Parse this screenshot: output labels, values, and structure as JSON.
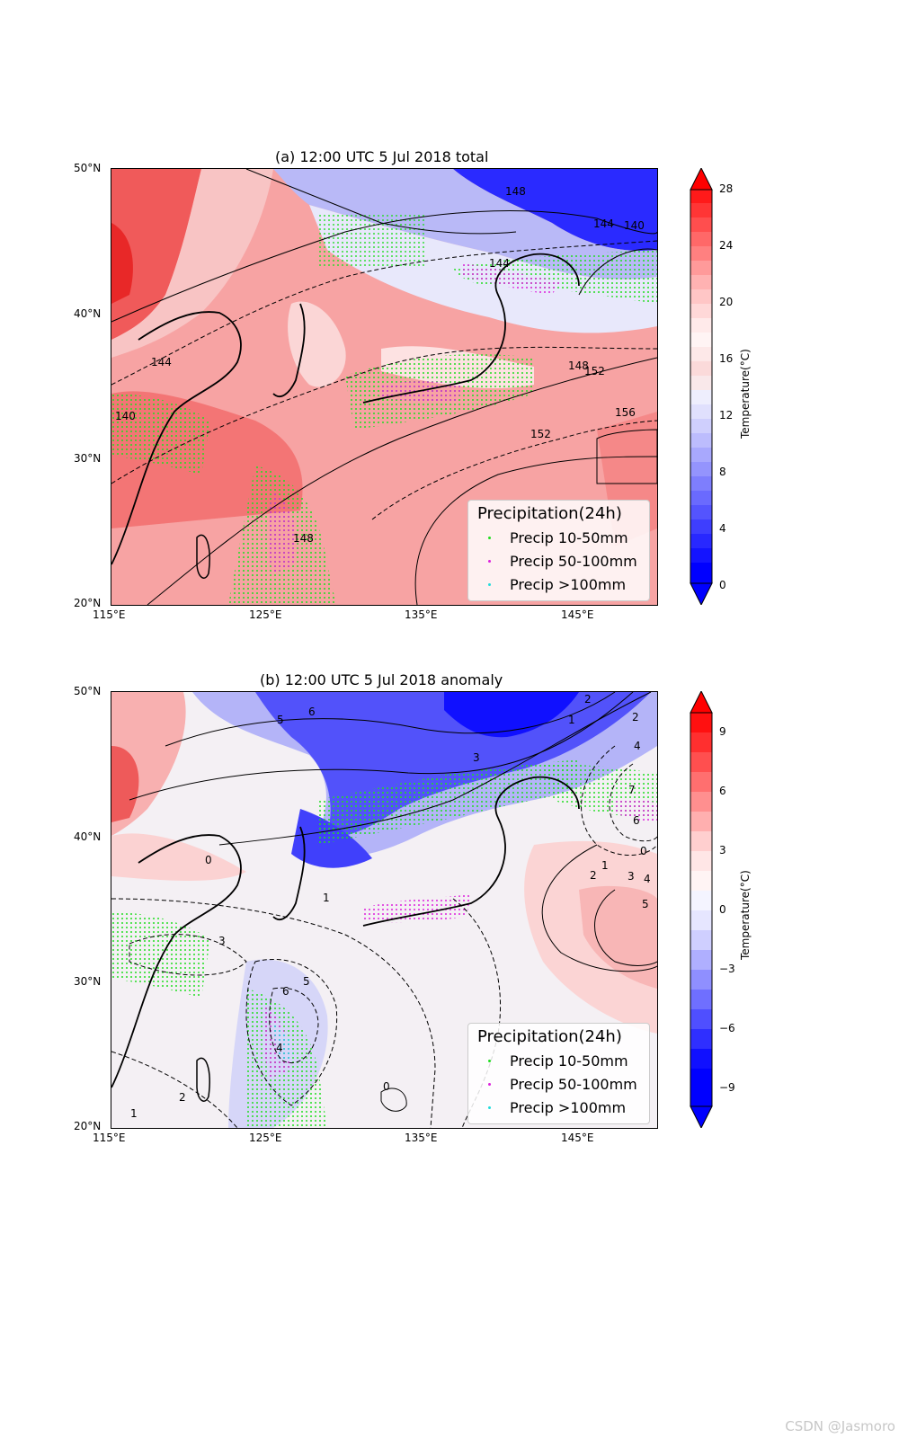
{
  "panels": [
    {
      "title": "(a) 12:00 UTC 5 Jul 2018 total",
      "lat_ticks": [
        "50°N",
        "40°N",
        "30°N",
        "20°N"
      ],
      "lon_ticks": [
        "115°E",
        "125°E",
        "135°E",
        "145°E"
      ],
      "contour_labels": [
        "144",
        "148",
        "144",
        "140",
        "140",
        "144",
        "148",
        "152",
        "152",
        "156",
        "148"
      ],
      "legend": {
        "title": "Precipitation(24h)",
        "items": [
          "Precip 10-50mm",
          "Precip 50-100mm",
          "Precip >100mm"
        ]
      },
      "colorbar": {
        "label": "Temperature(°C)",
        "ticks": [
          "28",
          "24",
          "20",
          "16",
          "12",
          "8",
          "4",
          "0"
        ]
      }
    },
    {
      "title": "(b) 12:00 UTC 5 Jul 2018 anomaly",
      "lat_ticks": [
        "50°N",
        "40°N",
        "30°N",
        "20°N"
      ],
      "lon_ticks": [
        "115°E",
        "125°E",
        "135°E",
        "145°E"
      ],
      "contour_labels": [
        "5",
        "6",
        "3",
        "2",
        "1",
        "2",
        "4",
        "7",
        "6",
        "0",
        "1",
        "2",
        "3",
        "4",
        "5",
        "0",
        "1",
        "3",
        "6",
        "5",
        "4",
        "2",
        "1",
        "0"
      ],
      "legend": {
        "title": "Precipitation(24h)",
        "items": [
          "Precip 10-50mm",
          "Precip 50-100mm",
          "Precip >100mm"
        ]
      },
      "colorbar": {
        "label": "Temperature(°C)",
        "ticks": [
          "9",
          "6",
          "3",
          "0",
          "−3",
          "−6",
          "−9"
        ]
      }
    }
  ],
  "legend_colors": [
    "#22dd22",
    "#dd22dd",
    "#22dddd"
  ],
  "watermark": "CSDN @Jasmoro"
}
